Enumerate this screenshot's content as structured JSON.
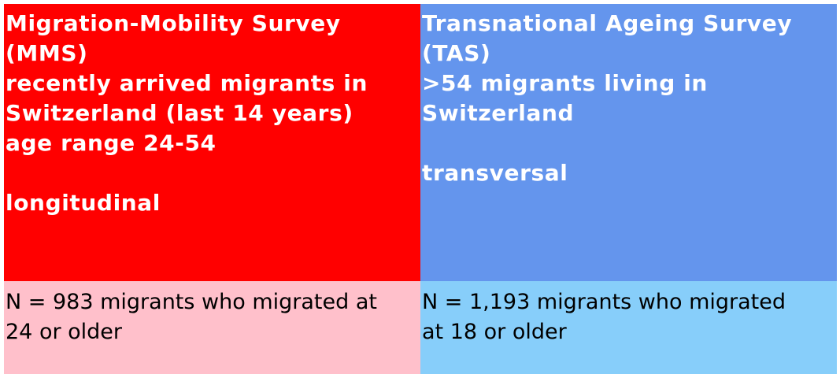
{
  "panels": {
    "mms": {
      "title_line1": "Migration-Mobility Survey",
      "title_line2": "(MMS)",
      "desc_line1": "recently arrived migrants in",
      "desc_line2": "Switzerland (last 14 years)",
      "desc_line3": "age range 24-54",
      "design": "longitudinal",
      "sample_line1": "N = 983 migrants who migrated at",
      "sample_line2": "24 or older",
      "top_color": "#FF0000",
      "bottom_color": "#FFC0CB"
    },
    "tas": {
      "title_line1": "Transnational Ageing Survey",
      "title_line2": "(TAS)",
      "desc_line1": ">54 migrants living in",
      "desc_line2": "Switzerland",
      "design": "transversal",
      "sample_line1": "N = 1,193 migrants who migrated",
      "sample_line2": "at 18 or older",
      "top_color": "#6495ED",
      "bottom_color": "#87CEFA"
    }
  }
}
